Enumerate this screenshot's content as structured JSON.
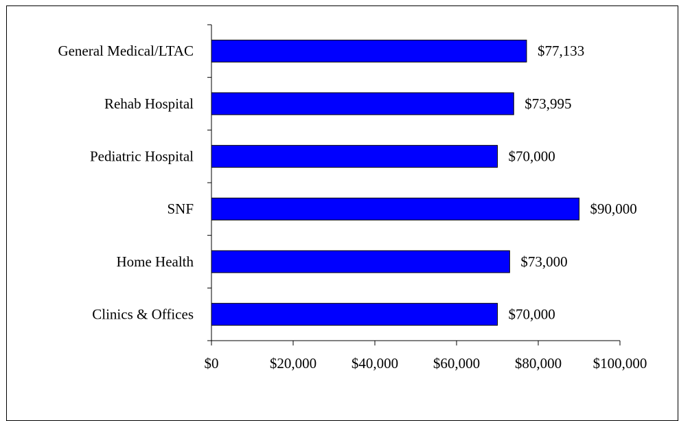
{
  "chart_data": {
    "type": "bar",
    "orientation": "horizontal",
    "categories": [
      "General Medical/LTAC",
      "Rehab Hospital",
      "Pediatric Hospital",
      "SNF",
      "Home Health",
      "Clinics & Offices"
    ],
    "values": [
      77133,
      73995,
      70000,
      90000,
      73000,
      70000
    ],
    "value_labels": [
      "$77,133",
      "$73,995",
      "$70,000",
      "$90,000",
      "$73,000",
      "$70,000"
    ],
    "color": "#0000ff",
    "xlim": [
      0,
      100000
    ],
    "xticks": [
      {
        "value": 0,
        "label": "$0"
      },
      {
        "value": 20000,
        "label": "$20,000"
      },
      {
        "value": 40000,
        "label": "$40,000"
      },
      {
        "value": 60000,
        "label": "$60,000"
      },
      {
        "value": 80000,
        "label": "$80,000"
      },
      {
        "value": 100000,
        "label": "$100,000"
      }
    ],
    "grid": false
  }
}
